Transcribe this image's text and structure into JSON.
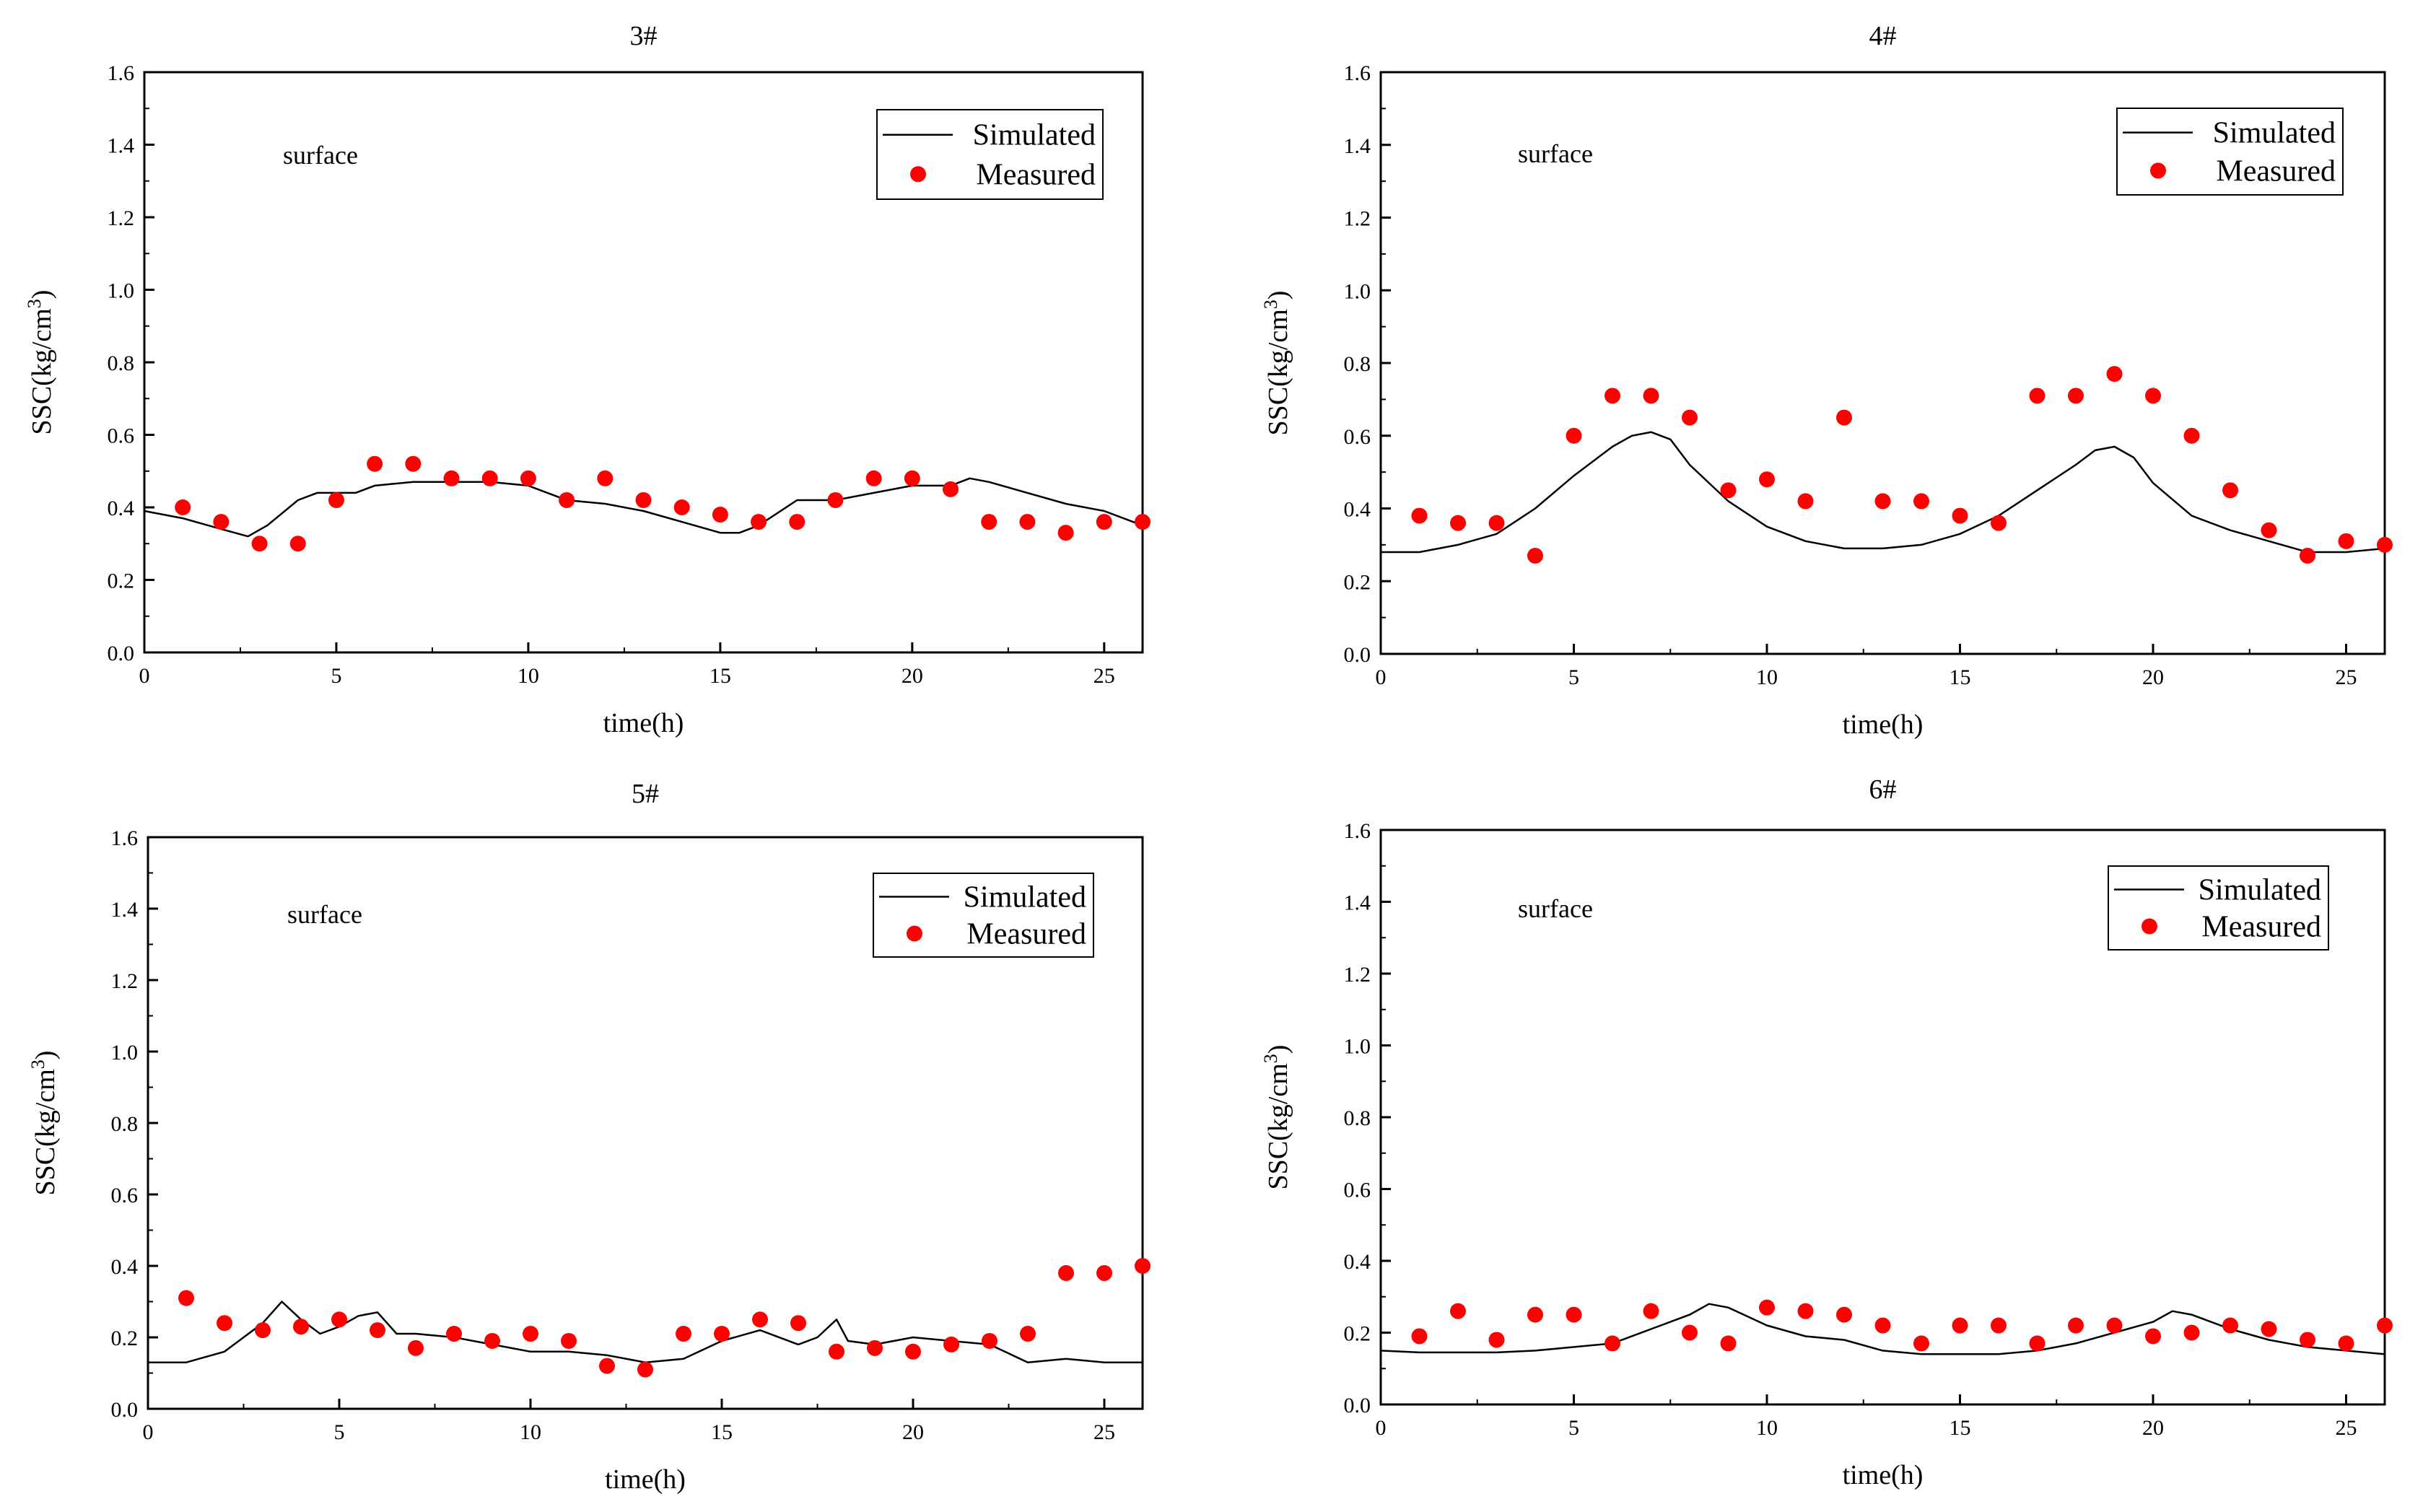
{
  "figure": {
    "colors": {
      "simulated": "#000000",
      "measured": "#ff0000",
      "axes": "#000000"
    }
  },
  "chart_data": [
    {
      "type": "line+scatter",
      "title": "3#",
      "annotation": "surface",
      "xlabel": "time(h)",
      "ylabel": "SSC(kg/cm3)",
      "ylabel_base": "SSC(kg/cm",
      "ylabel_sup": "3",
      "ylabel_close": ")",
      "xlim": [
        0,
        26
      ],
      "ylim": [
        0,
        1.6
      ],
      "xticks": [
        0,
        5,
        10,
        15,
        20,
        25
      ],
      "xtick_labels": [
        "0",
        "5",
        "10",
        "15",
        "20",
        "25"
      ],
      "yticks": [
        0,
        0.2,
        0.4,
        0.6,
        0.8,
        1.0,
        1.2,
        1.4,
        1.6
      ],
      "ytick_labels": [
        "0.0",
        "0.2",
        "0.4",
        "0.6",
        "0.8",
        "1.0",
        "1.2",
        "1.4",
        "1.6"
      ],
      "legend": {
        "simulated": "Simulated",
        "measured": "Measured",
        "position": "top-right"
      },
      "series": [
        {
          "name": "Simulated",
          "kind": "line",
          "x": [
            0,
            1,
            2,
            2.7,
            3.2,
            4,
            4.5,
            5,
            5.5,
            6,
            7,
            8,
            9,
            10,
            11,
            12,
            13,
            14,
            15,
            15.5,
            16,
            17,
            18,
            19,
            20,
            21,
            21.5,
            22,
            23,
            24,
            25,
            26
          ],
          "y": [
            0.39,
            0.37,
            0.34,
            0.32,
            0.35,
            0.42,
            0.44,
            0.44,
            0.44,
            0.46,
            0.47,
            0.47,
            0.47,
            0.46,
            0.42,
            0.41,
            0.39,
            0.36,
            0.33,
            0.33,
            0.35,
            0.42,
            0.42,
            0.44,
            0.46,
            0.46,
            0.48,
            0.47,
            0.44,
            0.41,
            0.39,
            0.35
          ]
        },
        {
          "name": "Measured",
          "kind": "scatter",
          "x": [
            1,
            2,
            3,
            4,
            5,
            6,
            7,
            8,
            9,
            10,
            11,
            12,
            13,
            14,
            15,
            16,
            17,
            18,
            19,
            20,
            21,
            22,
            23,
            24,
            25,
            26
          ],
          "y": [
            0.4,
            0.36,
            0.3,
            0.3,
            0.42,
            0.52,
            0.52,
            0.48,
            0.48,
            0.48,
            0.42,
            0.48,
            0.42,
            0.4,
            0.38,
            0.36,
            0.36,
            0.42,
            0.48,
            0.48,
            0.45,
            0.36,
            0.36,
            0.33,
            0.36,
            0.36
          ]
        }
      ]
    },
    {
      "type": "line+scatter",
      "title": "4#",
      "annotation": "surface",
      "xlabel": "time(h)",
      "ylabel": "SSC(kg/cm3)",
      "ylabel_base": "SSC(kg/cm",
      "ylabel_sup": "3",
      "ylabel_close": ")",
      "xlim": [
        0,
        26
      ],
      "ylim": [
        0,
        1.6
      ],
      "xticks": [
        0,
        5,
        10,
        15,
        20,
        25
      ],
      "xtick_labels": [
        "0",
        "5",
        "10",
        "15",
        "20",
        "25"
      ],
      "yticks": [
        0,
        0.2,
        0.4,
        0.6,
        0.8,
        1.0,
        1.2,
        1.4,
        1.6
      ],
      "ytick_labels": [
        "0.0",
        "0.2",
        "0.4",
        "0.6",
        "0.8",
        "1.0",
        "1.2",
        "1.4",
        "1.6"
      ],
      "legend": {
        "simulated": "Simulated",
        "measured": "Measured",
        "position": "top-right"
      },
      "series": [
        {
          "name": "Simulated",
          "kind": "line",
          "x": [
            0,
            1,
            2,
            3,
            4,
            5,
            6,
            6.5,
            7,
            7.5,
            8,
            9,
            10,
            11,
            12,
            13,
            14,
            15,
            16,
            17,
            18,
            18.5,
            19,
            19.5,
            20,
            21,
            22,
            23,
            24,
            25,
            26
          ],
          "y": [
            0.28,
            0.28,
            0.3,
            0.33,
            0.4,
            0.49,
            0.57,
            0.6,
            0.61,
            0.59,
            0.52,
            0.42,
            0.35,
            0.31,
            0.29,
            0.29,
            0.3,
            0.33,
            0.38,
            0.45,
            0.52,
            0.56,
            0.57,
            0.54,
            0.47,
            0.38,
            0.34,
            0.31,
            0.28,
            0.28,
            0.29
          ]
        },
        {
          "name": "Measured",
          "kind": "scatter",
          "x": [
            1,
            2,
            3,
            4,
            5,
            6,
            7,
            8,
            9,
            10,
            11,
            12,
            13,
            14,
            15,
            16,
            17,
            18,
            19,
            20,
            21,
            22,
            23,
            24,
            25,
            26
          ],
          "y": [
            0.38,
            0.36,
            0.36,
            0.27,
            0.6,
            0.71,
            0.71,
            0.65,
            0.45,
            0.48,
            0.42,
            0.65,
            0.42,
            0.42,
            0.38,
            0.36,
            0.71,
            0.71,
            0.77,
            0.71,
            0.6,
            0.45,
            0.34,
            0.27,
            0.31,
            0.3
          ]
        }
      ]
    },
    {
      "type": "line+scatter",
      "title": "5#",
      "annotation": "surface",
      "xlabel": "time(h)",
      "ylabel": "SSC(kg/cm3)",
      "ylabel_base": "SSC(kg/cm",
      "ylabel_sup": "3",
      "ylabel_close": ")",
      "xlim": [
        0,
        26
      ],
      "ylim": [
        0,
        1.6
      ],
      "xticks": [
        0,
        5,
        10,
        15,
        20,
        25
      ],
      "xtick_labels": [
        "0",
        "5",
        "10",
        "15",
        "20",
        "25"
      ],
      "yticks": [
        0,
        0.2,
        0.4,
        0.6,
        0.8,
        1.0,
        1.2,
        1.4,
        1.6
      ],
      "ytick_labels": [
        "0.0",
        "0.2",
        "0.4",
        "0.6",
        "0.8",
        "1.0",
        "1.2",
        "1.4",
        "1.6"
      ],
      "legend": {
        "simulated": "Simulated",
        "measured": "Measured",
        "position": "top-right"
      },
      "series": [
        {
          "name": "Simulated",
          "kind": "line",
          "x": [
            0,
            1,
            2,
            3,
            3.5,
            4,
            4.5,
            5,
            5.5,
            6,
            6.5,
            7,
            8,
            9,
            10,
            11,
            12,
            13,
            14,
            15,
            16,
            17,
            17.5,
            18,
            18.3,
            19,
            20,
            21,
            22,
            23,
            24,
            25,
            26
          ],
          "y": [
            0.13,
            0.13,
            0.16,
            0.24,
            0.3,
            0.25,
            0.21,
            0.23,
            0.26,
            0.27,
            0.21,
            0.21,
            0.2,
            0.18,
            0.16,
            0.16,
            0.15,
            0.13,
            0.14,
            0.19,
            0.22,
            0.18,
            0.2,
            0.25,
            0.19,
            0.18,
            0.2,
            0.19,
            0.18,
            0.13,
            0.14,
            0.13,
            0.13
          ]
        },
        {
          "name": "Measured",
          "kind": "scatter",
          "x": [
            1,
            2,
            3,
            4,
            5,
            6,
            7,
            8,
            9,
            10,
            11,
            12,
            13,
            14,
            15,
            16,
            17,
            18,
            19,
            20,
            21,
            22,
            23,
            24,
            25,
            26
          ],
          "y": [
            0.31,
            0.24,
            0.22,
            0.23,
            0.25,
            0.22,
            0.17,
            0.21,
            0.19,
            0.21,
            0.19,
            0.12,
            0.11,
            0.21,
            0.21,
            0.25,
            0.24,
            0.16,
            0.17,
            0.16,
            0.18,
            0.19,
            0.21,
            0.38,
            0.38,
            0.4
          ]
        }
      ]
    },
    {
      "type": "line+scatter",
      "title": "6#",
      "annotation": "surface",
      "xlabel": "time(h)",
      "ylabel": "SSC(kg/cm3)",
      "ylabel_base": "SSC(kg/cm",
      "ylabel_sup": "3",
      "ylabel_close": ")",
      "xlim": [
        0,
        26
      ],
      "ylim": [
        0,
        1.6
      ],
      "xticks": [
        0,
        5,
        10,
        15,
        20,
        25
      ],
      "xtick_labels": [
        "0",
        "5",
        "10",
        "15",
        "20",
        "25"
      ],
      "yticks": [
        0,
        0.2,
        0.4,
        0.6,
        0.8,
        1.0,
        1.2,
        1.4,
        1.6
      ],
      "ytick_labels": [
        "0.0",
        "0.2",
        "0.4",
        "0.6",
        "0.8",
        "1.0",
        "1.2",
        "1.4",
        "1.6"
      ],
      "legend": {
        "simulated": "Simulated",
        "measured": "Measured",
        "position": "top-right"
      },
      "series": [
        {
          "name": "Simulated",
          "kind": "line",
          "x": [
            0,
            1,
            2,
            3,
            4,
            5,
            6,
            7,
            8,
            8.5,
            9,
            10,
            11,
            12,
            13,
            14,
            15,
            16,
            17,
            18,
            19,
            20,
            20.5,
            21,
            22,
            23,
            24,
            25,
            26
          ],
          "y": [
            0.15,
            0.145,
            0.145,
            0.145,
            0.15,
            0.16,
            0.17,
            0.21,
            0.25,
            0.28,
            0.27,
            0.22,
            0.19,
            0.18,
            0.15,
            0.14,
            0.14,
            0.14,
            0.15,
            0.17,
            0.2,
            0.23,
            0.26,
            0.25,
            0.21,
            0.18,
            0.16,
            0.15,
            0.14
          ]
        },
        {
          "name": "Measured",
          "kind": "scatter",
          "x": [
            1,
            2,
            3,
            4,
            5,
            6,
            7,
            8,
            9,
            10,
            11,
            12,
            13,
            14,
            15,
            16,
            17,
            18,
            19,
            20,
            21,
            22,
            23,
            24,
            25,
            26
          ],
          "y": [
            0.19,
            0.26,
            0.18,
            0.25,
            0.25,
            0.17,
            0.26,
            0.2,
            0.17,
            0.27,
            0.26,
            0.25,
            0.22,
            0.17,
            0.22,
            0.22,
            0.17,
            0.22,
            0.22,
            0.19,
            0.2,
            0.22,
            0.21,
            0.18,
            0.17,
            0.22
          ]
        }
      ]
    }
  ]
}
